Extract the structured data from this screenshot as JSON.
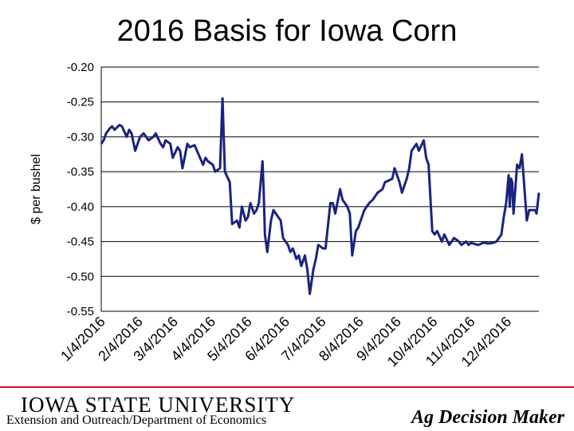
{
  "colors": {
    "line": "#1a237e",
    "grid": "#000000",
    "footer_accent": "#c8102e"
  },
  "footer": {
    "university": "IOWA STATE UNIVERSITY",
    "department": "Extension and Outreach/Department of Economics",
    "brand": "Ag Decision Maker"
  },
  "chart_data": {
    "type": "line",
    "title": "2016 Basis for Iowa Corn",
    "ylabel": "$ per bushel",
    "xlabel": "",
    "ylim": [
      -0.55,
      -0.2
    ],
    "yticks": [
      "-0.20",
      "-0.25",
      "-0.30",
      "-0.35",
      "-0.40",
      "-0.45",
      "-0.50",
      "-0.55"
    ],
    "xlim": [
      "2016-01-04",
      "2016-12-30"
    ],
    "xticks": [
      "1/4/2016",
      "2/4/2016",
      "3/4/2016",
      "4/4/2016",
      "5/4/2016",
      "6/4/2016",
      "7/4/2016",
      "8/4/2016",
      "9/4/2016",
      "10/4/2016",
      "11/4/2016",
      "12/4/2016"
    ],
    "grid": "horizontal",
    "series": [
      {
        "x": [
          "2016-01-04",
          "2016-01-06",
          "2016-01-08",
          "2016-01-11",
          "2016-01-13",
          "2016-01-15",
          "2016-01-19",
          "2016-01-21",
          "2016-01-25",
          "2016-01-27",
          "2016-01-29",
          "2016-02-01",
          "2016-02-03",
          "2016-02-05",
          "2016-02-08",
          "2016-02-10",
          "2016-02-12",
          "2016-02-16",
          "2016-02-18",
          "2016-02-22",
          "2016-02-24",
          "2016-02-26",
          "2016-03-01",
          "2016-03-03",
          "2016-03-07",
          "2016-03-09",
          "2016-03-11",
          "2016-03-15",
          "2016-03-17",
          "2016-03-21",
          "2016-03-23",
          "2016-03-28",
          "2016-03-30",
          "2016-04-01",
          "2016-04-05",
          "2016-04-07",
          "2016-04-11",
          "2016-04-13",
          "2016-04-15",
          "2016-04-19",
          "2016-04-21",
          "2016-04-25",
          "2016-04-27",
          "2016-04-29",
          "2016-05-02",
          "2016-05-04",
          "2016-05-06",
          "2016-05-09",
          "2016-05-11",
          "2016-05-13",
          "2016-05-16",
          "2016-05-17",
          "2016-05-18",
          "2016-05-20",
          "2016-05-23",
          "2016-05-25",
          "2016-05-27",
          "2016-05-31",
          "2016-06-02",
          "2016-06-06",
          "2016-06-08",
          "2016-06-10",
          "2016-06-13",
          "2016-06-15",
          "2016-06-17",
          "2016-06-20",
          "2016-06-22",
          "2016-06-24",
          "2016-06-27",
          "2016-06-29",
          "2016-07-01",
          "2016-07-05",
          "2016-07-07",
          "2016-07-11",
          "2016-07-13",
          "2016-07-15",
          "2016-07-19",
          "2016-07-21",
          "2016-07-25",
          "2016-07-27",
          "2016-07-29",
          "2016-08-01",
          "2016-08-03",
          "2016-08-05",
          "2016-08-08",
          "2016-08-10",
          "2016-08-12",
          "2016-08-15",
          "2016-08-17",
          "2016-08-19",
          "2016-08-23",
          "2016-08-25",
          "2016-08-29",
          "2016-08-31",
          "2016-09-02",
          "2016-09-06",
          "2016-09-08",
          "2016-09-12",
          "2016-09-14",
          "2016-09-16",
          "2016-09-20",
          "2016-09-22",
          "2016-09-26",
          "2016-09-28",
          "2016-09-30",
          "2016-10-03",
          "2016-10-05",
          "2016-10-07",
          "2016-10-11",
          "2016-10-13",
          "2016-10-17",
          "2016-10-19",
          "2016-10-21",
          "2016-10-25",
          "2016-10-27",
          "2016-10-31",
          "2016-11-02",
          "2016-11-04",
          "2016-11-08",
          "2016-11-10",
          "2016-11-14",
          "2016-11-16",
          "2016-11-18",
          "2016-11-22",
          "2016-11-25",
          "2016-11-29",
          "2016-12-01",
          "2016-12-03",
          "2016-12-05",
          "2016-12-06",
          "2016-12-07",
          "2016-12-08",
          "2016-12-09",
          "2016-12-12",
          "2016-12-14",
          "2016-12-16",
          "2016-12-20",
          "2016-12-22",
          "2016-12-27",
          "2016-12-28",
          "2016-12-30"
        ],
        "values": [
          -0.31,
          -0.305,
          -0.295,
          -0.288,
          -0.285,
          -0.29,
          -0.283,
          -0.285,
          -0.3,
          -0.29,
          -0.295,
          -0.32,
          -0.31,
          -0.3,
          -0.295,
          -0.3,
          -0.305,
          -0.3,
          -0.295,
          -0.31,
          -0.315,
          -0.305,
          -0.31,
          -0.33,
          -0.315,
          -0.32,
          -0.345,
          -0.31,
          -0.315,
          -0.312,
          -0.32,
          -0.34,
          -0.33,
          -0.335,
          -0.34,
          -0.35,
          -0.345,
          -0.245,
          -0.35,
          -0.365,
          -0.425,
          -0.42,
          -0.43,
          -0.4,
          -0.42,
          -0.415,
          -0.395,
          -0.41,
          -0.405,
          -0.395,
          -0.335,
          -0.38,
          -0.44,
          -0.465,
          -0.42,
          -0.405,
          -0.41,
          -0.42,
          -0.445,
          -0.455,
          -0.465,
          -0.46,
          -0.475,
          -0.47,
          -0.485,
          -0.47,
          -0.49,
          -0.525,
          -0.49,
          -0.475,
          -0.455,
          -0.46,
          -0.46,
          -0.395,
          -0.395,
          -0.41,
          -0.375,
          -0.39,
          -0.4,
          -0.41,
          -0.47,
          -0.435,
          -0.43,
          -0.42,
          -0.405,
          -0.4,
          -0.395,
          -0.39,
          -0.385,
          -0.38,
          -0.375,
          -0.365,
          -0.362,
          -0.36,
          -0.345,
          -0.365,
          -0.38,
          -0.36,
          -0.345,
          -0.32,
          -0.31,
          -0.32,
          -0.305,
          -0.33,
          -0.34,
          -0.435,
          -0.44,
          -0.435,
          -0.45,
          -0.44,
          -0.455,
          -0.45,
          -0.445,
          -0.45,
          -0.455,
          -0.45,
          -0.455,
          -0.452,
          -0.454,
          -0.455,
          -0.452,
          -0.452,
          -0.453,
          -0.452,
          -0.45,
          -0.44,
          -0.415,
          -0.395,
          -0.355,
          -0.4,
          -0.36,
          -0.365,
          -0.41,
          -0.34,
          -0.345,
          -0.325,
          -0.42,
          -0.405,
          -0.405,
          -0.41,
          -0.38
        ]
      }
    ]
  }
}
